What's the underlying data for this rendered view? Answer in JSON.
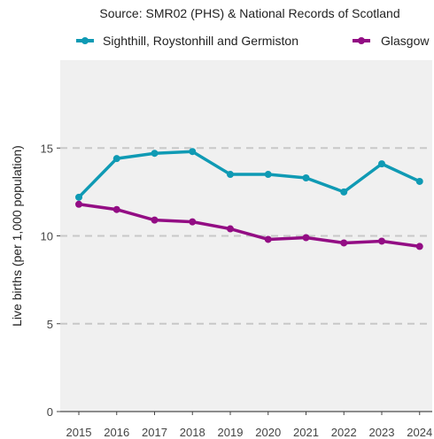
{
  "chart_data": {
    "type": "line",
    "subtitle": "Source: SMR02 (PHS) & National Records of Scotland",
    "ylabel": "Live births (per 1,000 population)",
    "xlabel": "",
    "x": [
      "2015",
      "2016",
      "2017",
      "2018",
      "2019",
      "2020",
      "2021",
      "2022",
      "2023",
      "2024"
    ],
    "ylim": [
      0,
      20
    ],
    "yticks": [
      0,
      5,
      10,
      15
    ],
    "grid": "horizontal dashed",
    "legend": "top",
    "series": [
      {
        "name": "Sighthill, Roystonhill and Germiston",
        "color": "#0f9ab4",
        "values": [
          12.2,
          14.4,
          14.7,
          14.8,
          13.5,
          13.5,
          13.3,
          12.5,
          14.1,
          13.1
        ]
      },
      {
        "name": "Glasgow",
        "color": "#930d84",
        "values": [
          11.8,
          11.5,
          10.9,
          10.8,
          10.4,
          9.8,
          9.9,
          9.6,
          9.7,
          9.4
        ]
      }
    ]
  }
}
